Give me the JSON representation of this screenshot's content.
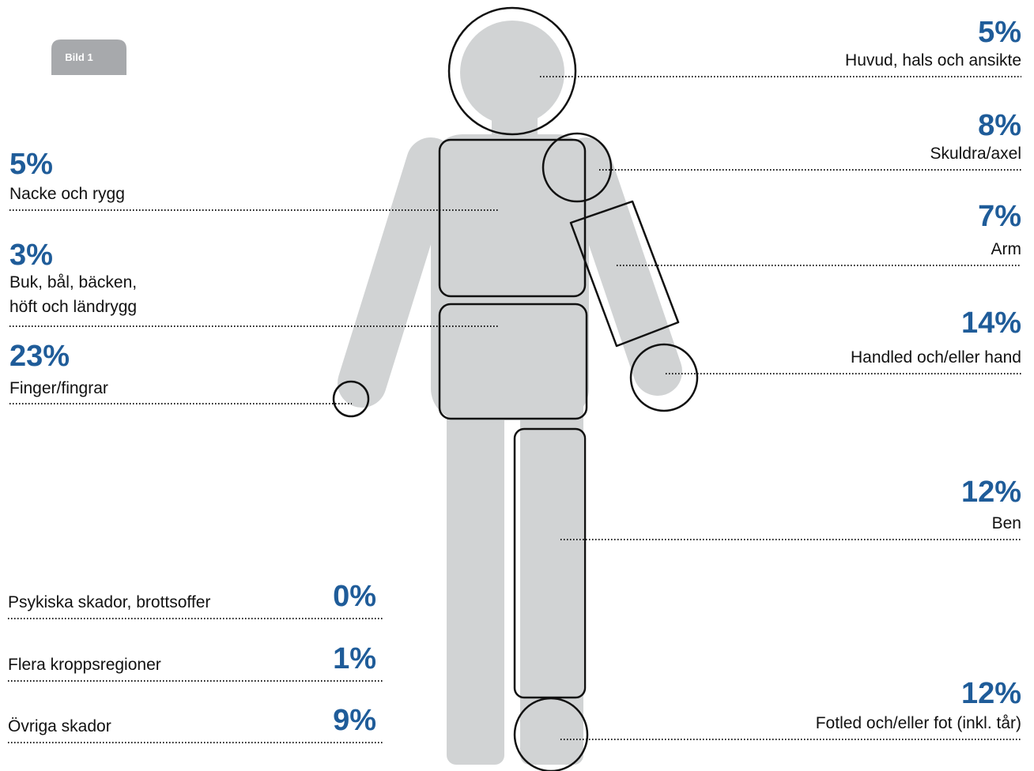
{
  "badge": "Bild 1",
  "right_regions": [
    {
      "percent": "5%",
      "label": "Huvud, hals och ansikte"
    },
    {
      "percent": "8%",
      "label": "Skuldra/axel"
    },
    {
      "percent": "7%",
      "label": "Arm"
    },
    {
      "percent": "14%",
      "label": "Handled och/eller hand"
    },
    {
      "percent": "12%",
      "label": "Ben"
    },
    {
      "percent": "12%",
      "label": "Fotled och/eller fot (inkl. tår)"
    }
  ],
  "left_regions": [
    {
      "percent": "5%",
      "label": [
        "Nacke och rygg"
      ]
    },
    {
      "percent": "3%",
      "label": [
        "Buk, bål, bäcken,",
        "höft och ländrygg"
      ]
    },
    {
      "percent": "23%",
      "label": [
        "Finger/fingrar"
      ]
    }
  ],
  "other_regions": [
    {
      "label": "Psykiska skador, brottsoffer",
      "percent": "0%"
    },
    {
      "label": "Flera kroppsregioner",
      "percent": "1%"
    },
    {
      "label": "Övriga skador",
      "percent": "9%"
    }
  ]
}
